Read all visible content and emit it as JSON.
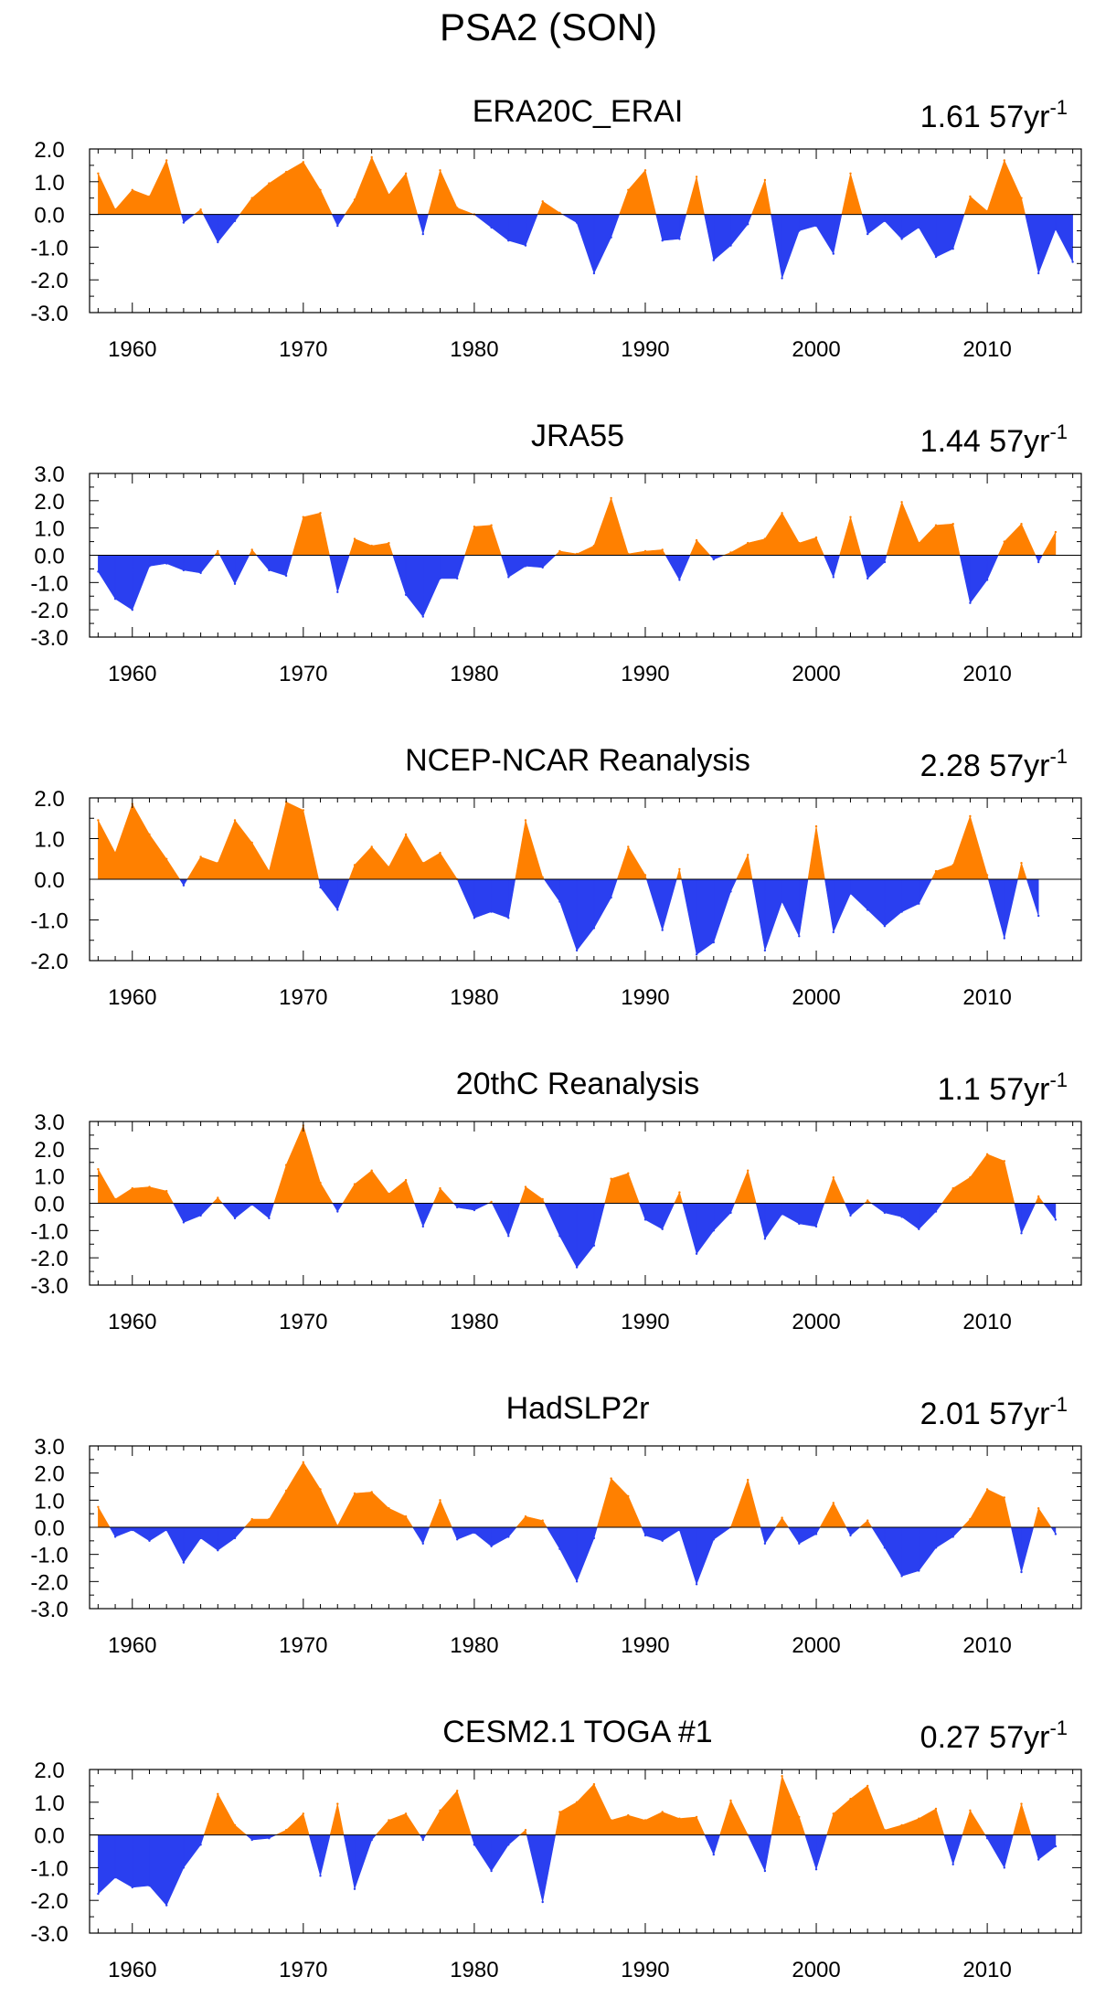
{
  "figure_title": "PSA2 (SON)",
  "colors": {
    "positive": "#FF8000",
    "negative": "#2A3FF0",
    "axis": "#000000"
  },
  "chart_data": [
    {
      "type": "area",
      "title": "ERA20C_ERAI",
      "annotation": "1.61 57yr",
      "annotation_sup": "-1",
      "xlabel": "",
      "ylabel": "",
      "xlim": [
        1957.5,
        2015.5
      ],
      "ylim": [
        -3.0,
        2.0
      ],
      "yticks": [
        "2.0",
        "1.0",
        "0.0",
        "-1.0",
        "-2.0",
        "-3.0"
      ],
      "xticks": [
        "1960",
        "1970",
        "1980",
        "1990",
        "2000",
        "2010"
      ],
      "x_start": 1958,
      "values": [
        1.25,
        0.15,
        0.75,
        0.55,
        1.65,
        -0.25,
        0.15,
        -0.85,
        -0.2,
        0.5,
        0.95,
        1.3,
        1.6,
        0.75,
        -0.35,
        0.45,
        1.75,
        0.6,
        1.25,
        -0.6,
        1.35,
        0.2,
        0.0,
        -0.4,
        -0.8,
        -0.95,
        0.4,
        0.05,
        -0.25,
        -1.8,
        -0.7,
        0.75,
        1.35,
        -0.8,
        -0.75,
        1.15,
        -1.4,
        -0.95,
        -0.3,
        1.05,
        -1.95,
        -0.5,
        -0.35,
        -1.2,
        1.25,
        -0.6,
        -0.2,
        -0.75,
        -0.4,
        -1.3,
        -1.05,
        0.55,
        0.1,
        1.65,
        0.5,
        -1.8,
        -0.45,
        -1.45
      ]
    },
    {
      "type": "area",
      "title": "JRA55",
      "annotation": "1.44 57yr",
      "annotation_sup": "-1",
      "xlabel": "",
      "ylabel": "",
      "xlim": [
        1957.5,
        2015.5
      ],
      "ylim": [
        -3.0,
        3.0
      ],
      "yticks": [
        "3.0",
        "2.0",
        "1.0",
        "0.0",
        "-1.0",
        "-2.0",
        "-3.0"
      ],
      "xticks": [
        "1960",
        "1970",
        "1980",
        "1990",
        "2000",
        "2010"
      ],
      "x_start": 1958,
      "values": [
        -0.6,
        -1.6,
        -2.0,
        -0.4,
        -0.3,
        -0.55,
        -0.65,
        0.15,
        -1.05,
        0.2,
        -0.55,
        -0.75,
        1.4,
        1.55,
        -1.35,
        0.6,
        0.35,
        0.45,
        -1.45,
        -2.25,
        -0.85,
        -0.85,
        1.05,
        1.1,
        -0.8,
        -0.4,
        -0.45,
        0.15,
        0.05,
        0.35,
        2.1,
        0.05,
        0.15,
        0.2,
        -0.9,
        0.55,
        -0.15,
        0.1,
        0.45,
        0.6,
        1.55,
        0.45,
        0.65,
        -0.8,
        1.4,
        -0.85,
        -0.25,
        1.95,
        0.45,
        1.1,
        1.15,
        -1.75,
        -0.9,
        0.5,
        1.15,
        -0.25,
        0.85
      ]
    },
    {
      "type": "area",
      "title": "NCEP-NCAR Reanalysis",
      "annotation": "2.28 57yr",
      "annotation_sup": "-1",
      "xlabel": "",
      "ylabel": "",
      "xlim": [
        1957.5,
        2015.5
      ],
      "ylim": [
        -2.0,
        2.0
      ],
      "yticks": [
        "2.0",
        "1.0",
        "0.0",
        "-1.0",
        "-2.0"
      ],
      "xticks": [
        "1960",
        "1970",
        "1980",
        "1990",
        "2000",
        "2010"
      ],
      "x_start": 1958,
      "values": [
        1.45,
        0.65,
        1.85,
        1.1,
        0.5,
        -0.15,
        0.55,
        0.4,
        1.45,
        0.9,
        0.2,
        1.9,
        1.7,
        -0.2,
        -0.75,
        0.35,
        0.8,
        0.3,
        1.1,
        0.4,
        0.65,
        0.0,
        -0.95,
        -0.8,
        -0.95,
        1.45,
        0.05,
        -0.55,
        -1.75,
        -1.2,
        -0.45,
        0.8,
        0.1,
        -1.25,
        0.25,
        -1.85,
        -1.55,
        -0.3,
        0.6,
        -1.75,
        -0.55,
        -1.4,
        1.3,
        -1.3,
        -0.35,
        -0.75,
        -1.15,
        -0.8,
        -0.6,
        0.2,
        0.35,
        1.55,
        0.1,
        -1.45,
        0.4,
        -0.9
      ]
    },
    {
      "type": "area",
      "title": "20thC Reanalysis",
      "annotation": "1.1 57yr",
      "annotation_sup": "-1",
      "xlabel": "",
      "ylabel": "",
      "xlim": [
        1957.5,
        2015.5
      ],
      "ylim": [
        -3.0,
        3.0
      ],
      "yticks": [
        "3.0",
        "2.0",
        "1.0",
        "0.0",
        "-1.0",
        "-2.0",
        "-3.0"
      ],
      "xticks": [
        "1960",
        "1970",
        "1980",
        "1990",
        "2000",
        "2010"
      ],
      "x_start": 1958,
      "values": [
        1.25,
        0.15,
        0.55,
        0.6,
        0.45,
        -0.7,
        -0.45,
        0.2,
        -0.55,
        -0.05,
        -0.55,
        1.4,
        2.85,
        0.75,
        -0.3,
        0.7,
        1.2,
        0.35,
        0.85,
        -0.85,
        0.55,
        -0.15,
        -0.25,
        0.05,
        -1.2,
        0.6,
        0.15,
        -1.2,
        -2.35,
        -1.55,
        0.9,
        1.1,
        -0.6,
        -0.95,
        0.4,
        -1.85,
        -1.0,
        -0.35,
        1.2,
        -1.3,
        -0.4,
        -0.75,
        -0.85,
        0.95,
        -0.45,
        0.1,
        -0.35,
        -0.5,
        -0.95,
        -0.3,
        0.55,
        0.95,
        1.8,
        1.55,
        -1.1,
        0.25,
        -0.6
      ]
    },
    {
      "type": "area",
      "title": "HadSLP2r",
      "annotation": "2.01 57yr",
      "annotation_sup": "-1",
      "xlabel": "",
      "ylabel": "",
      "xlim": [
        1957.5,
        2015.5
      ],
      "ylim": [
        -3.0,
        3.0
      ],
      "yticks": [
        "3.0",
        "2.0",
        "1.0",
        "0.0",
        "-1.0",
        "-2.0",
        "-3.0"
      ],
      "xticks": [
        "1960",
        "1970",
        "1980",
        "1990",
        "2000",
        "2010"
      ],
      "x_start": 1958,
      "values": [
        0.75,
        -0.35,
        -0.1,
        -0.5,
        -0.1,
        -1.3,
        -0.4,
        -0.85,
        -0.4,
        0.3,
        0.3,
        1.35,
        2.4,
        1.4,
        0.05,
        1.25,
        1.3,
        0.7,
        0.4,
        -0.6,
        1.0,
        -0.45,
        -0.2,
        -0.7,
        -0.35,
        0.4,
        0.25,
        -0.8,
        -2.0,
        -0.4,
        1.8,
        1.15,
        -0.3,
        -0.5,
        -0.1,
        -2.1,
        -0.45,
        0.0,
        1.75,
        -0.6,
        0.35,
        -0.6,
        -0.25,
        0.9,
        -0.3,
        0.25,
        -0.75,
        -1.8,
        -1.6,
        -0.75,
        -0.35,
        0.3,
        1.4,
        1.1,
        -1.65,
        0.7,
        -0.25
      ]
    },
    {
      "type": "area",
      "title": "CESM2.1 TOGA #1",
      "annotation": "0.27 57yr",
      "annotation_sup": "-1",
      "xlabel": "",
      "ylabel": "",
      "xlim": [
        1957.5,
        2015.5
      ],
      "ylim": [
        -3.0,
        2.0
      ],
      "yticks": [
        "2.0",
        "1.0",
        "0.0",
        "-1.0",
        "-2.0",
        "-3.0"
      ],
      "xticks": [
        "1960",
        "1970",
        "1980",
        "1990",
        "2000",
        "2010"
      ],
      "x_start": 1958,
      "values": [
        -1.8,
        -1.3,
        -1.6,
        -1.55,
        -2.15,
        -1.0,
        -0.3,
        1.25,
        0.3,
        -0.15,
        -0.1,
        0.15,
        0.65,
        -1.25,
        0.95,
        -1.65,
        -0.15,
        0.45,
        0.65,
        -0.15,
        0.75,
        1.35,
        -0.3,
        -1.1,
        -0.3,
        0.15,
        -2.05,
        0.7,
        1.0,
        1.55,
        0.45,
        0.6,
        0.45,
        0.7,
        0.5,
        0.55,
        -0.6,
        1.05,
        0.0,
        -1.1,
        1.8,
        0.55,
        -1.05,
        0.65,
        1.1,
        1.5,
        0.15,
        0.3,
        0.5,
        0.8,
        -0.9,
        0.75,
        -0.1,
        -1.0,
        0.95,
        -0.75,
        -0.35
      ]
    }
  ]
}
